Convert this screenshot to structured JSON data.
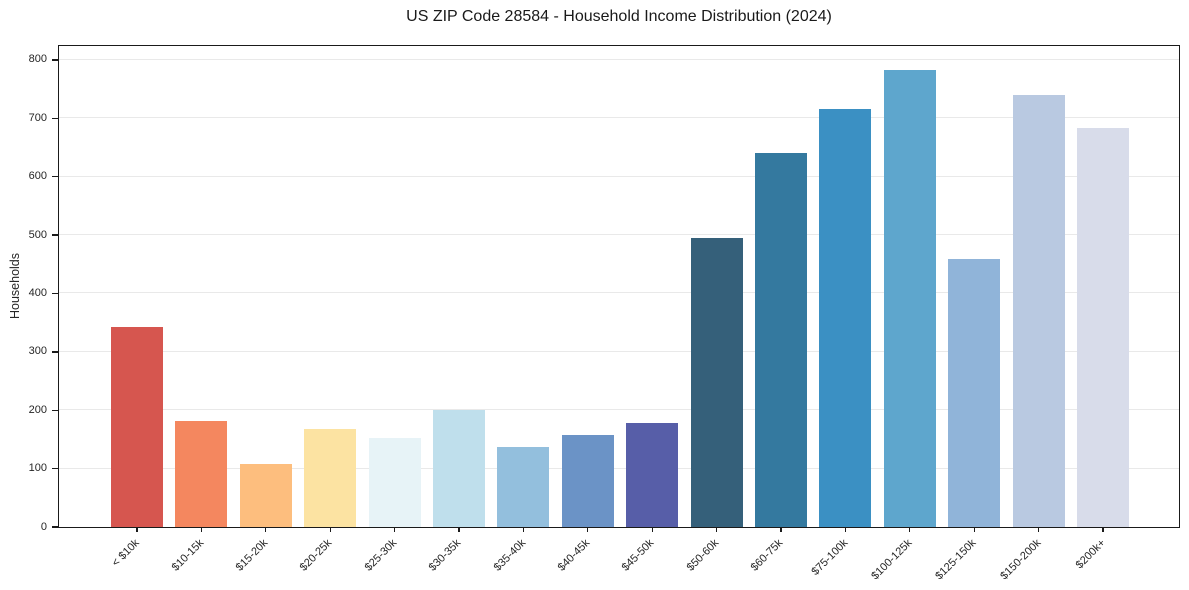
{
  "chart_data": {
    "type": "bar",
    "title": "US ZIP Code 28584 - Household Income Distribution (2024)",
    "xlabel": "",
    "ylabel": "Households",
    "ylim": [
      0,
      800
    ],
    "yticks": [
      0,
      100,
      200,
      300,
      400,
      500,
      600,
      700,
      800
    ],
    "grid": true,
    "legend_position": "none",
    "categories": [
      "< $10k",
      "$10-15k",
      "$15-20k",
      "$20-25k",
      "$25-30k",
      "$30-35k",
      "$35-40k",
      "$40-45k",
      "$45-50k",
      "$50-60k",
      "$60-75k",
      "$75-100k",
      "$100-125k",
      "$125-150k",
      "$150-200k",
      "$200k+"
    ],
    "values": [
      343,
      181,
      108,
      168,
      153,
      200,
      137,
      157,
      178,
      495,
      640,
      715,
      783,
      459,
      740,
      683
    ],
    "bar_colors": [
      "#d6564f",
      "#f4875f",
      "#fdbe7e",
      "#fce3a2",
      "#e7f3f7",
      "#bfdfec",
      "#93bfdd",
      "#6b93c6",
      "#575ea8",
      "#35607a",
      "#34799f",
      "#3b90c3",
      "#5ea6cd",
      "#90b4d9",
      "#b9c9e1",
      "#d8dcea"
    ]
  },
  "colors": {
    "background": "#ffffff",
    "grid": "#e9e9e9",
    "spine": "#1a1a1a",
    "text": "#262626"
  }
}
